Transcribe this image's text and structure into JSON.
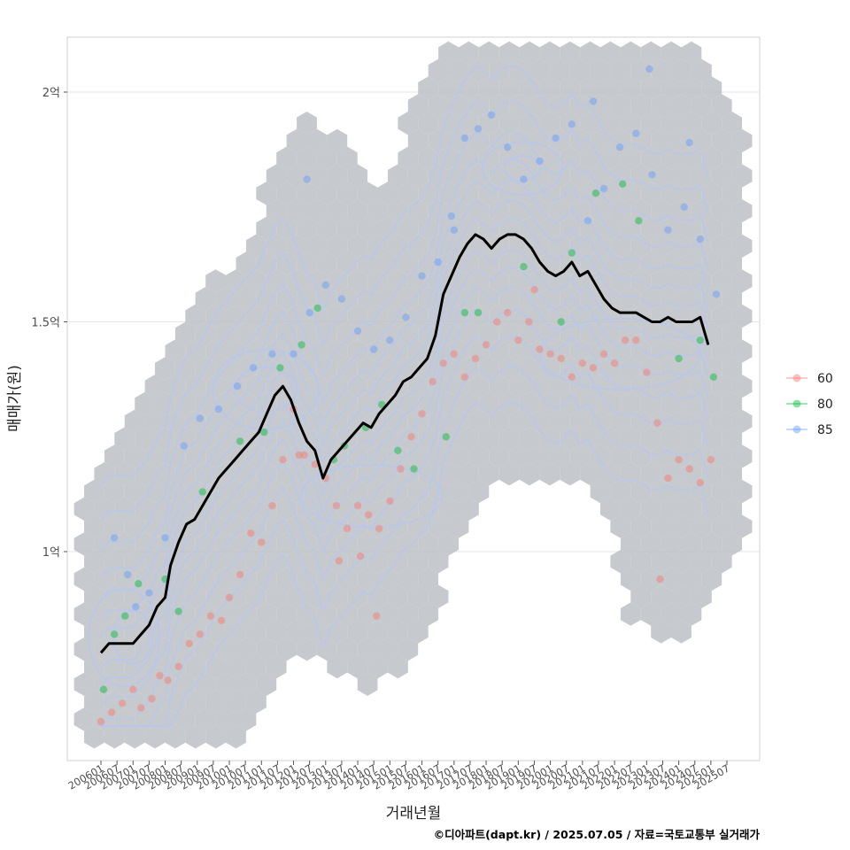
{
  "chart_data": {
    "type": "scatter",
    "title": "",
    "xlabel": "거래년월",
    "ylabel": "매매가(원)",
    "caption": "©디아파트(dapt.kr) / 2025.07.05 / 자료=국토교통부 실거래가",
    "x_range": [
      "2006-01",
      "2025-07"
    ],
    "ylim": [
      65000000,
      212000000
    ],
    "y_ticks": [
      {
        "value": 100000000,
        "label": "1억"
      },
      {
        "value": 150000000,
        "label": "1.5억"
      },
      {
        "value": 200000000,
        "label": "2억"
      }
    ],
    "x_ticks": [
      "200601",
      "200607",
      "200701",
      "200707",
      "200801",
      "200807",
      "200901",
      "200907",
      "201001",
      "201007",
      "201101",
      "201107",
      "201201",
      "201207",
      "201301",
      "201307",
      "201401",
      "201407",
      "201501",
      "201507",
      "201601",
      "201607",
      "201701",
      "201707",
      "201801",
      "201807",
      "201901",
      "201907",
      "202001",
      "202007",
      "202101",
      "202107",
      "202201",
      "202207",
      "202301",
      "202307",
      "202401",
      "202407",
      "202501",
      "202507"
    ],
    "grid": true,
    "legend": {
      "position": "right",
      "entries": [
        {
          "name": "60",
          "color": "#F8766D"
        },
        {
          "name": "80",
          "color": "#00BA38"
        },
        {
          "name": "85",
          "color": "#619CFF"
        }
      ]
    },
    "layers": [
      "hexbin density",
      "density contours",
      "transaction points",
      "moving average line"
    ],
    "colors": {
      "hex": "#bcc0c4",
      "contour": "#b5c6f2",
      "line": "#000000"
    },
    "trend_line": {
      "name": "moving average",
      "points": [
        [
          "2006-01",
          78
        ],
        [
          "2006-04",
          80
        ],
        [
          "2006-07",
          80
        ],
        [
          "2006-10",
          80
        ],
        [
          "2007-01",
          80
        ],
        [
          "2007-04",
          82
        ],
        [
          "2007-07",
          84
        ],
        [
          "2007-10",
          88
        ],
        [
          "2008-01",
          90
        ],
        [
          "2008-03",
          97
        ],
        [
          "2008-06",
          102
        ],
        [
          "2008-09",
          106
        ],
        [
          "2008-12",
          107
        ],
        [
          "2009-03",
          110
        ],
        [
          "2009-06",
          113
        ],
        [
          "2009-09",
          116
        ],
        [
          "2009-12",
          118
        ],
        [
          "2010-03",
          120
        ],
        [
          "2010-06",
          122
        ],
        [
          "2010-09",
          124
        ],
        [
          "2010-12",
          126
        ],
        [
          "2011-03",
          130
        ],
        [
          "2011-06",
          134
        ],
        [
          "2011-09",
          136
        ],
        [
          "2011-12",
          133
        ],
        [
          "2012-03",
          128
        ],
        [
          "2012-06",
          124
        ],
        [
          "2012-09",
          122
        ],
        [
          "2012-12",
          116
        ],
        [
          "2013-03",
          120
        ],
        [
          "2013-06",
          122
        ],
        [
          "2013-09",
          124
        ],
        [
          "2013-12",
          126
        ],
        [
          "2014-03",
          128
        ],
        [
          "2014-06",
          127
        ],
        [
          "2014-09",
          130
        ],
        [
          "2014-12",
          132
        ],
        [
          "2015-03",
          134
        ],
        [
          "2015-06",
          137
        ],
        [
          "2015-09",
          138
        ],
        [
          "2015-12",
          140
        ],
        [
          "2016-03",
          142
        ],
        [
          "2016-06",
          147
        ],
        [
          "2016-09",
          156
        ],
        [
          "2016-12",
          160
        ],
        [
          "2017-03",
          164
        ],
        [
          "2017-06",
          167
        ],
        [
          "2017-09",
          169
        ],
        [
          "2017-12",
          168
        ],
        [
          "2018-03",
          166
        ],
        [
          "2018-06",
          168
        ],
        [
          "2018-09",
          169
        ],
        [
          "2018-12",
          169
        ],
        [
          "2019-03",
          168
        ],
        [
          "2019-06",
          166
        ],
        [
          "2019-09",
          163
        ],
        [
          "2019-12",
          161
        ],
        [
          "2020-03",
          160
        ],
        [
          "2020-06",
          161
        ],
        [
          "2020-09",
          163
        ],
        [
          "2020-12",
          160
        ],
        [
          "2021-03",
          161
        ],
        [
          "2021-06",
          158
        ],
        [
          "2021-09",
          155
        ],
        [
          "2021-12",
          153
        ],
        [
          "2022-03",
          152
        ],
        [
          "2022-06",
          152
        ],
        [
          "2022-09",
          152
        ],
        [
          "2022-12",
          151
        ],
        [
          "2023-03",
          150
        ],
        [
          "2023-06",
          150
        ],
        [
          "2023-09",
          151
        ],
        [
          "2023-12",
          150
        ],
        [
          "2024-03",
          150
        ],
        [
          "2024-06",
          150
        ],
        [
          "2024-09",
          151
        ],
        [
          "2024-12",
          145
        ]
      ]
    },
    "series": [
      {
        "name": "60",
        "points": [
          [
            "2006-01",
            63
          ],
          [
            "2006-05",
            65
          ],
          [
            "2006-09",
            67
          ],
          [
            "2007-01",
            70
          ],
          [
            "2007-04",
            66
          ],
          [
            "2007-08",
            68
          ],
          [
            "2007-11",
            73
          ],
          [
            "2008-02",
            72
          ],
          [
            "2008-06",
            75
          ],
          [
            "2008-10",
            80
          ],
          [
            "2009-02",
            82
          ],
          [
            "2009-06",
            86
          ],
          [
            "2009-10",
            85
          ],
          [
            "2010-01",
            90
          ],
          [
            "2010-05",
            95
          ],
          [
            "2010-09",
            104
          ],
          [
            "2011-01",
            102
          ],
          [
            "2011-05",
            110
          ],
          [
            "2011-09",
            120
          ],
          [
            "2012-01",
            131
          ],
          [
            "2012-05",
            121
          ],
          [
            "2012-09",
            119
          ],
          [
            "2013-01",
            116
          ],
          [
            "2013-05",
            110
          ],
          [
            "2013-09",
            105
          ],
          [
            "2014-01",
            110
          ],
          [
            "2014-05",
            108
          ],
          [
            "2014-09",
            105
          ],
          [
            "2015-01",
            111
          ],
          [
            "2015-05",
            118
          ],
          [
            "2015-09",
            125
          ],
          [
            "2016-01",
            130
          ],
          [
            "2016-05",
            137
          ],
          [
            "2016-09",
            141
          ],
          [
            "2017-01",
            143
          ],
          [
            "2017-05",
            138
          ],
          [
            "2017-09",
            142
          ],
          [
            "2018-01",
            145
          ],
          [
            "2018-05",
            150
          ],
          [
            "2018-09",
            152
          ],
          [
            "2019-01",
            146
          ],
          [
            "2019-05",
            150
          ],
          [
            "2019-09",
            144
          ],
          [
            "2020-01",
            143
          ],
          [
            "2020-05",
            142
          ],
          [
            "2020-09",
            138
          ],
          [
            "2021-01",
            141
          ],
          [
            "2021-05",
            140
          ],
          [
            "2021-09",
            143
          ],
          [
            "2022-01",
            141
          ],
          [
            "2022-05",
            146
          ],
          [
            "2022-09",
            146
          ],
          [
            "2023-01",
            139
          ],
          [
            "2023-05",
            128
          ],
          [
            "2023-09",
            116
          ],
          [
            "2024-01",
            120
          ],
          [
            "2024-05",
            118
          ],
          [
            "2024-09",
            115
          ],
          [
            "2025-01",
            120
          ],
          [
            "2013-06",
            98
          ],
          [
            "2014-02",
            99
          ],
          [
            "2014-08",
            86
          ],
          [
            "2012-03",
            121
          ],
          [
            "2019-07",
            157
          ],
          [
            "2023-06",
            94
          ]
        ]
      },
      {
        "name": "80",
        "points": [
          [
            "2006-02",
            70
          ],
          [
            "2006-06",
            82
          ],
          [
            "2006-10",
            86
          ],
          [
            "2007-03",
            93
          ],
          [
            "2008-01",
            94
          ],
          [
            "2008-06",
            87
          ],
          [
            "2009-03",
            113
          ],
          [
            "2010-05",
            124
          ],
          [
            "2011-02",
            126
          ],
          [
            "2011-08",
            140
          ],
          [
            "2012-04",
            145
          ],
          [
            "2012-10",
            153
          ],
          [
            "2013-04",
            120
          ],
          [
            "2013-08",
            123
          ],
          [
            "2014-04",
            127
          ],
          [
            "2014-10",
            132
          ],
          [
            "2015-04",
            122
          ],
          [
            "2015-10",
            118
          ],
          [
            "2016-10",
            125
          ],
          [
            "2017-05",
            152
          ],
          [
            "2017-10",
            152
          ],
          [
            "2019-03",
            162
          ],
          [
            "2020-05",
            150
          ],
          [
            "2020-09",
            165
          ],
          [
            "2021-06",
            178
          ],
          [
            "2022-04",
            180
          ],
          [
            "2022-10",
            172
          ],
          [
            "2024-01",
            142
          ],
          [
            "2024-09",
            146
          ],
          [
            "2025-02",
            138
          ]
        ]
      },
      {
        "name": "85",
        "points": [
          [
            "2006-06",
            103
          ],
          [
            "2006-11",
            95
          ],
          [
            "2007-02",
            88
          ],
          [
            "2007-07",
            91
          ],
          [
            "2008-01",
            103
          ],
          [
            "2008-08",
            123
          ],
          [
            "2009-02",
            129
          ],
          [
            "2009-09",
            131
          ],
          [
            "2010-04",
            136
          ],
          [
            "2010-10",
            140
          ],
          [
            "2011-05",
            143
          ],
          [
            "2012-01",
            143
          ],
          [
            "2012-07",
            152
          ],
          [
            "2013-01",
            158
          ],
          [
            "2013-07",
            155
          ],
          [
            "2014-01",
            148
          ],
          [
            "2014-07",
            144
          ],
          [
            "2015-01",
            146
          ],
          [
            "2015-07",
            151
          ],
          [
            "2016-01",
            160
          ],
          [
            "2016-07",
            163
          ],
          [
            "2017-01",
            170
          ],
          [
            "2017-05",
            190
          ],
          [
            "2017-10",
            192
          ],
          [
            "2018-03",
            195
          ],
          [
            "2018-09",
            188
          ],
          [
            "2019-03",
            181
          ],
          [
            "2019-09",
            185
          ],
          [
            "2020-03",
            190
          ],
          [
            "2020-09",
            193
          ],
          [
            "2021-03",
            172
          ],
          [
            "2021-09",
            179
          ],
          [
            "2022-03",
            188
          ],
          [
            "2022-09",
            191
          ],
          [
            "2023-03",
            182
          ],
          [
            "2023-09",
            170
          ],
          [
            "2024-03",
            175
          ],
          [
            "2024-09",
            168
          ],
          [
            "2025-03",
            156
          ],
          [
            "2012-06",
            181
          ],
          [
            "2016-12",
            173
          ],
          [
            "2021-05",
            198
          ],
          [
            "2023-02",
            205
          ],
          [
            "2024-05",
            189
          ]
        ]
      }
    ]
  }
}
